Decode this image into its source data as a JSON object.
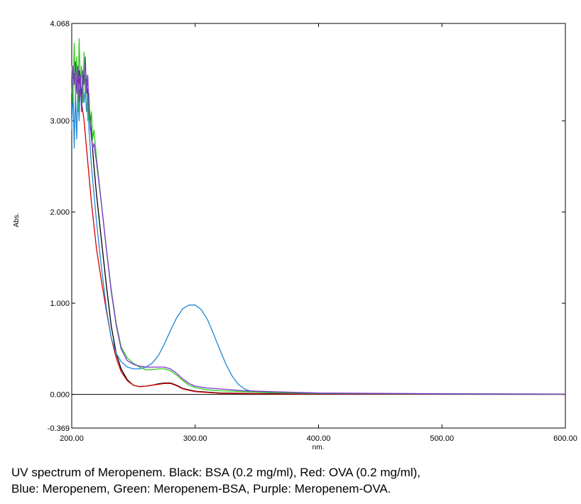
{
  "chart_data": {
    "type": "line",
    "xlabel": "nm.",
    "ylabel": "Abs.",
    "xlim": [
      200,
      600
    ],
    "ylim": [
      -0.369,
      4.068
    ],
    "x_ticks": [
      200,
      300,
      400,
      500,
      600
    ],
    "x_tick_labels": [
      "200.00",
      "300.00",
      "400.00",
      "500.00",
      "600.00"
    ],
    "y_ticks": [
      -0.369,
      0,
      1,
      2,
      3,
      4.068
    ],
    "y_tick_labels": [
      "-0.369",
      "0.000",
      "1.000",
      "2.000",
      "3.000",
      "4.068"
    ],
    "grid": false,
    "baseline": 0,
    "series": [
      {
        "color": "#000000",
        "points": [
          [
            200,
            3.45
          ],
          [
            202,
            3.5
          ],
          [
            204,
            3.35
          ],
          [
            206,
            3.55
          ],
          [
            208,
            3.3
          ],
          [
            210,
            3.5
          ],
          [
            212,
            3.4
          ],
          [
            214,
            3.2
          ],
          [
            216,
            2.85
          ],
          [
            218,
            2.5
          ],
          [
            220,
            2.2
          ],
          [
            224,
            1.7
          ],
          [
            228,
            1.2
          ],
          [
            232,
            0.75
          ],
          [
            236,
            0.45
          ],
          [
            240,
            0.28
          ],
          [
            245,
            0.16
          ],
          [
            250,
            0.1
          ],
          [
            255,
            0.085
          ],
          [
            260,
            0.09
          ],
          [
            265,
            0.1
          ],
          [
            270,
            0.115
          ],
          [
            275,
            0.125
          ],
          [
            280,
            0.125
          ],
          [
            285,
            0.1
          ],
          [
            290,
            0.065
          ],
          [
            300,
            0.035
          ],
          [
            320,
            0.015
          ],
          [
            360,
            0.008
          ],
          [
            400,
            0.005
          ],
          [
            500,
            0.003
          ],
          [
            600,
            0.002
          ]
        ]
      },
      {
        "color": "#d40000",
        "points": [
          [
            200,
            3.55
          ],
          [
            202,
            3.5
          ],
          [
            204,
            3.6
          ],
          [
            206,
            3.45
          ],
          [
            208,
            3.2
          ],
          [
            210,
            3.0
          ],
          [
            212,
            2.7
          ],
          [
            214,
            2.4
          ],
          [
            216,
            2.1
          ],
          [
            218,
            1.85
          ],
          [
            220,
            1.6
          ],
          [
            224,
            1.25
          ],
          [
            228,
            0.92
          ],
          [
            232,
            0.62
          ],
          [
            236,
            0.4
          ],
          [
            240,
            0.25
          ],
          [
            245,
            0.15
          ],
          [
            250,
            0.1
          ],
          [
            255,
            0.085
          ],
          [
            260,
            0.09
          ],
          [
            265,
            0.1
          ],
          [
            270,
            0.11
          ],
          [
            275,
            0.12
          ],
          [
            280,
            0.12
          ],
          [
            285,
            0.095
          ],
          [
            290,
            0.06
          ],
          [
            300,
            0.03
          ],
          [
            320,
            0.012
          ],
          [
            360,
            0.006
          ],
          [
            400,
            0.004
          ],
          [
            500,
            0.002
          ],
          [
            600,
            0.001
          ]
        ]
      },
      {
        "color": "#1e88d8",
        "points": [
          [
            200,
            2.9
          ],
          [
            201,
            3.4
          ],
          [
            202,
            2.7
          ],
          [
            203,
            3.3
          ],
          [
            204,
            2.8
          ],
          [
            205,
            3.4
          ],
          [
            206,
            3.0
          ],
          [
            207,
            3.5
          ],
          [
            208,
            3.1
          ],
          [
            209,
            3.4
          ],
          [
            210,
            3.2
          ],
          [
            211,
            3.35
          ],
          [
            212,
            3.1
          ],
          [
            213,
            3.3
          ],
          [
            214,
            2.9
          ],
          [
            215,
            2.7
          ],
          [
            216,
            2.5
          ],
          [
            218,
            2.2
          ],
          [
            220,
            1.9
          ],
          [
            224,
            1.4
          ],
          [
            228,
            0.95
          ],
          [
            232,
            0.62
          ],
          [
            236,
            0.45
          ],
          [
            240,
            0.36
          ],
          [
            245,
            0.3
          ],
          [
            250,
            0.28
          ],
          [
            255,
            0.28
          ],
          [
            260,
            0.3
          ],
          [
            265,
            0.34
          ],
          [
            270,
            0.42
          ],
          [
            275,
            0.55
          ],
          [
            280,
            0.7
          ],
          [
            285,
            0.84
          ],
          [
            290,
            0.94
          ],
          [
            295,
            0.98
          ],
          [
            300,
            0.98
          ],
          [
            305,
            0.93
          ],
          [
            310,
            0.82
          ],
          [
            315,
            0.66
          ],
          [
            320,
            0.49
          ],
          [
            325,
            0.33
          ],
          [
            330,
            0.2
          ],
          [
            335,
            0.11
          ],
          [
            340,
            0.06
          ],
          [
            345,
            0.035
          ],
          [
            350,
            0.025
          ],
          [
            360,
            0.018
          ],
          [
            400,
            0.01
          ],
          [
            500,
            0.004
          ],
          [
            600,
            0.002
          ]
        ]
      },
      {
        "color": "#2ecc1a",
        "points": [
          [
            200,
            3.6
          ],
          [
            201,
            3.2
          ],
          [
            202,
            3.85
          ],
          [
            203,
            3.3
          ],
          [
            204,
            3.7
          ],
          [
            205,
            3.1
          ],
          [
            206,
            3.9
          ],
          [
            207,
            3.4
          ],
          [
            208,
            3.6
          ],
          [
            209,
            3.2
          ],
          [
            210,
            3.75
          ],
          [
            211,
            3.3
          ],
          [
            212,
            3.5
          ],
          [
            213,
            3.0
          ],
          [
            214,
            3.3
          ],
          [
            215,
            2.9
          ],
          [
            216,
            3.1
          ],
          [
            217,
            2.8
          ],
          [
            218,
            2.9
          ],
          [
            220,
            2.6
          ],
          [
            224,
            2.1
          ],
          [
            228,
            1.6
          ],
          [
            232,
            1.15
          ],
          [
            236,
            0.78
          ],
          [
            240,
            0.52
          ],
          [
            245,
            0.4
          ],
          [
            250,
            0.34
          ],
          [
            255,
            0.3
          ],
          [
            260,
            0.27
          ],
          [
            265,
            0.27
          ],
          [
            270,
            0.28
          ],
          [
            275,
            0.28
          ],
          [
            280,
            0.26
          ],
          [
            285,
            0.21
          ],
          [
            290,
            0.15
          ],
          [
            295,
            0.1
          ],
          [
            300,
            0.075
          ],
          [
            310,
            0.05
          ],
          [
            320,
            0.04
          ],
          [
            340,
            0.03
          ],
          [
            360,
            0.022
          ],
          [
            400,
            0.012
          ],
          [
            500,
            0.006
          ],
          [
            600,
            0.003
          ]
        ]
      },
      {
        "color": "#7a32c8",
        "points": [
          [
            200,
            3.3
          ],
          [
            201,
            3.6
          ],
          [
            202,
            3.4
          ],
          [
            203,
            3.65
          ],
          [
            204,
            3.3
          ],
          [
            205,
            3.6
          ],
          [
            206,
            3.2
          ],
          [
            207,
            3.5
          ],
          [
            208,
            3.1
          ],
          [
            209,
            3.55
          ],
          [
            210,
            3.4
          ],
          [
            211,
            3.7
          ],
          [
            212,
            3.3
          ],
          [
            213,
            3.5
          ],
          [
            214,
            3.1
          ],
          [
            215,
            2.95
          ],
          [
            216,
            2.8
          ],
          [
            217,
            2.7
          ],
          [
            218,
            2.75
          ],
          [
            220,
            2.55
          ],
          [
            224,
            2.1
          ],
          [
            228,
            1.6
          ],
          [
            232,
            1.13
          ],
          [
            236,
            0.76
          ],
          [
            240,
            0.5
          ],
          [
            245,
            0.37
          ],
          [
            250,
            0.33
          ],
          [
            255,
            0.31
          ],
          [
            260,
            0.3
          ],
          [
            265,
            0.3
          ],
          [
            270,
            0.3
          ],
          [
            275,
            0.3
          ],
          [
            280,
            0.28
          ],
          [
            285,
            0.23
          ],
          [
            290,
            0.17
          ],
          [
            295,
            0.12
          ],
          [
            300,
            0.09
          ],
          [
            310,
            0.07
          ],
          [
            320,
            0.06
          ],
          [
            340,
            0.04
          ],
          [
            360,
            0.03
          ],
          [
            400,
            0.015
          ],
          [
            500,
            0.007
          ],
          [
            600,
            0.004
          ]
        ]
      }
    ]
  },
  "caption": {
    "line1": "UV spectrum of Meropenem. Black: BSA (0.2 mg/ml), Red: OVA (0.2 mg/ml),",
    "line2": "Blue: Meropenem, Green: Meropenem-BSA, Purple: Meropenem-OVA."
  }
}
